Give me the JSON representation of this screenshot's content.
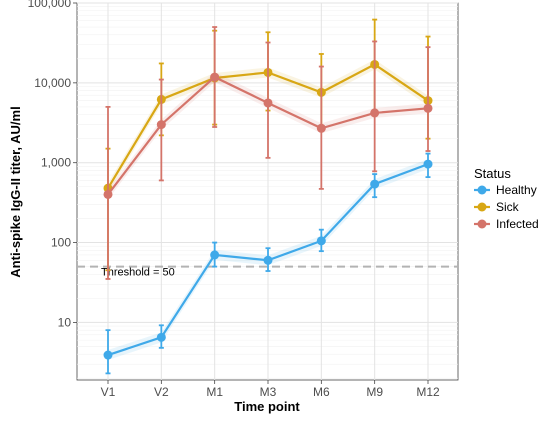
{
  "chart_data": {
    "type": "line",
    "title": "",
    "xlabel": "Time point",
    "ylabel": "Anti-spike IgG-II titer, AU/ml",
    "y_scale": "log10",
    "ylim": [
      1.9,
      100000
    ],
    "y_ticks": [
      10,
      100,
      1000,
      10000,
      100000
    ],
    "y_tick_labels": [
      "10",
      "100",
      "1,000",
      "10,000",
      "100,000"
    ],
    "categories": [
      "V1",
      "V2",
      "M1",
      "M3",
      "M6",
      "M9",
      "M12"
    ],
    "grid": true,
    "legend": {
      "title": "Status",
      "placement": "right"
    },
    "threshold": {
      "value": 50,
      "label": "Threshold = 50"
    },
    "series": [
      {
        "name": "Healthy",
        "color": "#3fa9e9",
        "values": [
          3.9,
          6.5,
          70,
          60,
          105,
          540,
          960
        ],
        "err_low": [
          2.3,
          4.8,
          50,
          44,
          78,
          370,
          660
        ],
        "err_high": [
          8,
          9.2,
          100,
          85,
          145,
          720,
          1300
        ]
      },
      {
        "name": "Sick",
        "color": "#d8a714",
        "values": [
          480,
          6200,
          11500,
          13500,
          7600,
          17000,
          6000
        ],
        "err_low": [
          45,
          2200,
          3000,
          4500,
          2700,
          4400,
          2000
        ],
        "err_high": [
          1500,
          17500,
          45000,
          43000,
          23000,
          62000,
          38000
        ]
      },
      {
        "name": "Infected",
        "color": "#d4746a",
        "values": [
          400,
          3000,
          11800,
          5600,
          2700,
          4200,
          4800
        ],
        "err_low": [
          35,
          600,
          2800,
          1150,
          470,
          780,
          1400
        ],
        "err_high": [
          5000,
          11000,
          50000,
          32000,
          16000,
          33000,
          28000
        ]
      }
    ]
  }
}
